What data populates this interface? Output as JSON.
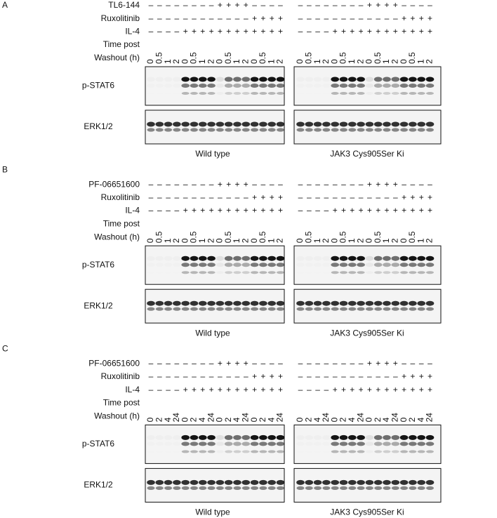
{
  "panels": [
    {
      "letter": "A",
      "rows": [
        {
          "label": "TL6-144",
          "left": [
            "–",
            "–",
            "–",
            "–",
            "–",
            "–",
            "–",
            "–",
            "+",
            "+",
            "+",
            "+",
            "–",
            "–",
            "–",
            "–"
          ],
          "right": [
            "–",
            "–",
            "–",
            "–",
            "–",
            "–",
            "–",
            "–",
            "+",
            "+",
            "+",
            "+",
            "–",
            "–",
            "–",
            "–"
          ]
        },
        {
          "label": "Ruxolitinib",
          "left": [
            "–",
            "–",
            "–",
            "–",
            "–",
            "–",
            "–",
            "–",
            "–",
            "–",
            "–",
            "–",
            "+",
            "+",
            "+",
            "+"
          ],
          "right": [
            "–",
            "–",
            "–",
            "–",
            "–",
            "–",
            "–",
            "–",
            "–",
            "–",
            "–",
            "–",
            "+",
            "+",
            "+",
            "+"
          ]
        },
        {
          "label": "IL-4",
          "left": [
            "–",
            "–",
            "–",
            "–",
            "+",
            "+",
            "+",
            "+",
            "+",
            "+",
            "+",
            "+",
            "+",
            "+",
            "+",
            "+"
          ],
          "right": [
            "–",
            "–",
            "–",
            "–",
            "+",
            "+",
            "+",
            "+",
            "+",
            "+",
            "+",
            "+",
            "+",
            "+",
            "+",
            "+"
          ]
        }
      ],
      "time_label": [
        "Time post",
        "Washout (h)"
      ],
      "times": {
        "left": [
          "0",
          "0.5",
          "1",
          "2",
          "0",
          "0.5",
          "1",
          "2",
          "0",
          "0.5",
          "1",
          "2",
          "0",
          "0.5",
          "1",
          "2"
        ],
        "right": [
          "0",
          "0.5",
          "1",
          "2",
          "0",
          "0.5",
          "1",
          "2",
          "0",
          "0.5",
          "1",
          "2",
          "0",
          "0.5",
          "1",
          "2"
        ]
      },
      "blots": [
        "p-STAT6",
        "ERK1/2"
      ],
      "captions": [
        "Wild type",
        "JAK3 Cys905Ser Ki"
      ]
    },
    {
      "letter": "B",
      "rows": [
        {
          "label": "PF-06651600",
          "left": [
            "–",
            "–",
            "–",
            "–",
            "–",
            "–",
            "–",
            "–",
            "+",
            "+",
            "+",
            "+",
            "–",
            "–",
            "–",
            "–"
          ],
          "right": [
            "–",
            "–",
            "–",
            "–",
            "–",
            "–",
            "–",
            "–",
            "+",
            "+",
            "+",
            "+",
            "–",
            "–",
            "–",
            "–"
          ]
        },
        {
          "label": "Ruxolitinib",
          "left": [
            "–",
            "–",
            "–",
            "–",
            "–",
            "–",
            "–",
            "–",
            "–",
            "–",
            "–",
            "–",
            "+",
            "+",
            "+",
            "+"
          ],
          "right": [
            "–",
            "–",
            "–",
            "–",
            "–",
            "–",
            "–",
            "–",
            "–",
            "–",
            "–",
            "–",
            "+",
            "+",
            "+",
            "+"
          ]
        },
        {
          "label": "IL-4",
          "left": [
            "–",
            "–",
            "–",
            "–",
            "+",
            "+",
            "+",
            "+",
            "+",
            "+",
            "+",
            "+",
            "+",
            "+",
            "+",
            "+"
          ],
          "right": [
            "–",
            "–",
            "–",
            "–",
            "+",
            "+",
            "+",
            "+",
            "+",
            "+",
            "+",
            "+",
            "+",
            "+",
            "+",
            "+"
          ]
        }
      ],
      "time_label": [
        "Time post",
        "Washout (h)"
      ],
      "times": {
        "left": [
          "0",
          "0.5",
          "1",
          "2",
          "0",
          "0.5",
          "1",
          "2",
          "0",
          "0.5",
          "1",
          "2",
          "0",
          "0.5",
          "1",
          "2"
        ],
        "right": [
          "0",
          "0.5",
          "1",
          "2",
          "0",
          "0.5",
          "1",
          "2",
          "0",
          "0.5",
          "1",
          "2",
          "0",
          "0.5",
          "1",
          "2"
        ]
      },
      "blots": [
        "p-STAT6",
        "ERK1/2"
      ],
      "captions": [
        "Wild type",
        "JAK3 Cys905Ser Ki"
      ]
    },
    {
      "letter": "C",
      "rows": [
        {
          "label": "PF-06651600",
          "left": [
            "–",
            "–",
            "–",
            "–",
            "–",
            "–",
            "–",
            "–",
            "+",
            "+",
            "+",
            "+",
            "–",
            "–",
            "–",
            "–"
          ],
          "right": [
            "–",
            "–",
            "–",
            "–",
            "–",
            "–",
            "–",
            "–",
            "+",
            "+",
            "+",
            "+",
            "–",
            "–",
            "–",
            "–"
          ]
        },
        {
          "label": "Ruxolitinib",
          "left": [
            "–",
            "–",
            "–",
            "–",
            "–",
            "–",
            "–",
            "–",
            "–",
            "–",
            "–",
            "–",
            "+",
            "+",
            "+",
            "+"
          ],
          "right": [
            "–",
            "–",
            "–",
            "–",
            "–",
            "–",
            "–",
            "–",
            "–",
            "–",
            "–",
            "–",
            "+",
            "+",
            "+",
            "+"
          ]
        },
        {
          "label": "IL-4",
          "left": [
            "–",
            "–",
            "–",
            "–",
            "+",
            "+",
            "+",
            "+",
            "+",
            "+",
            "+",
            "+",
            "+",
            "+",
            "+",
            "+"
          ],
          "right": [
            "–",
            "–",
            "–",
            "–",
            "+",
            "+",
            "+",
            "+",
            "+",
            "+",
            "+",
            "+",
            "+",
            "+",
            "+",
            "+"
          ]
        }
      ],
      "time_label": [
        "Time post",
        "Washout (h)"
      ],
      "times": {
        "left": [
          "0",
          "2",
          "4",
          "24",
          "0",
          "2",
          "4",
          "24",
          "0",
          "2",
          "4",
          "24",
          "0",
          "2",
          "4",
          "24"
        ],
        "right": [
          "0",
          "2",
          "4",
          "24",
          "0",
          "2",
          "4",
          "24",
          "0",
          "2",
          "4",
          "24",
          "0",
          "2",
          "4",
          "24"
        ]
      },
      "blots": [
        "p-STAT6",
        "ERK1/2"
      ],
      "captions": [
        "Wild type",
        "JAK3 Cys905Ser Ki"
      ]
    }
  ]
}
